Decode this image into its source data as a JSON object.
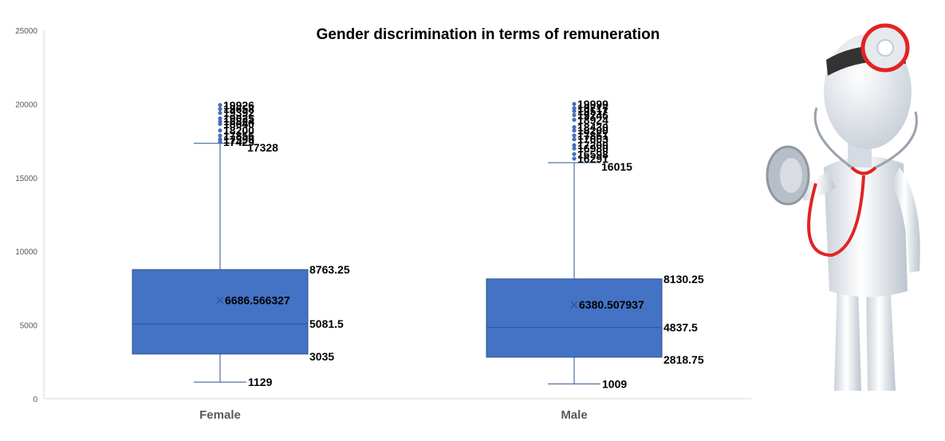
{
  "chart_data": {
    "type": "box",
    "title": "Gender discrimination in terms of remuneration",
    "xlabel": "",
    "ylabel": "",
    "ylim": [
      0,
      25000
    ],
    "yticks": [
      0,
      5000,
      10000,
      15000,
      20000,
      25000
    ],
    "grid": false,
    "legend": "none",
    "box_color": "#4472C4",
    "line_color": "#2F528F",
    "categories": [
      "Female",
      "Male"
    ],
    "series": [
      {
        "category": "Female",
        "min": 1129,
        "q1": 3035,
        "median": 5081.5,
        "q3": 8763.25,
        "upper_whisker": 17328,
        "mean": 6686.566327,
        "outliers": [
          19926,
          19658,
          19392,
          19025,
          18824,
          18640,
          18200,
          17856,
          17599,
          17429
        ],
        "labels": {
          "min": "1129",
          "q1": "3035",
          "median": "5081.5",
          "q3": "8763.25",
          "mean": "6686.566327",
          "upper_whisker": "17328",
          "outliers": [
            "19926",
            "19658",
            "19392",
            "19025",
            "18824",
            "18640",
            "18200",
            "17856",
            "17599",
            "17429"
          ]
        }
      },
      {
        "category": "Male",
        "min": 1009,
        "q1": 2818.75,
        "median": 4837.5,
        "q3": 8130.25,
        "upper_whisker": 16015,
        "mean": 6380.507937,
        "outliers": [
          19999,
          19717,
          19517,
          19246,
          18924,
          18430,
          18200,
          17861,
          17603,
          17200,
          16980,
          16598,
          16291
        ],
        "labels": {
          "min": "1009",
          "q1": "2818.75",
          "median": "4837.5",
          "q3": "8130.25",
          "mean": "6380.507937",
          "upper_whisker": "16015",
          "outliers": [
            "19999",
            "19717",
            "19517",
            "19246",
            "18924",
            "18430",
            "18200",
            "17861",
            "17603",
            "17200",
            "16980",
            "16598",
            "16291"
          ]
        }
      }
    ]
  },
  "illustration": {
    "name": "doctor-figure-with-stethoscope",
    "colors": {
      "body": "#e9edf2",
      "shade": "#c3cad3",
      "accent": "#e02424",
      "band": "#333333"
    }
  }
}
